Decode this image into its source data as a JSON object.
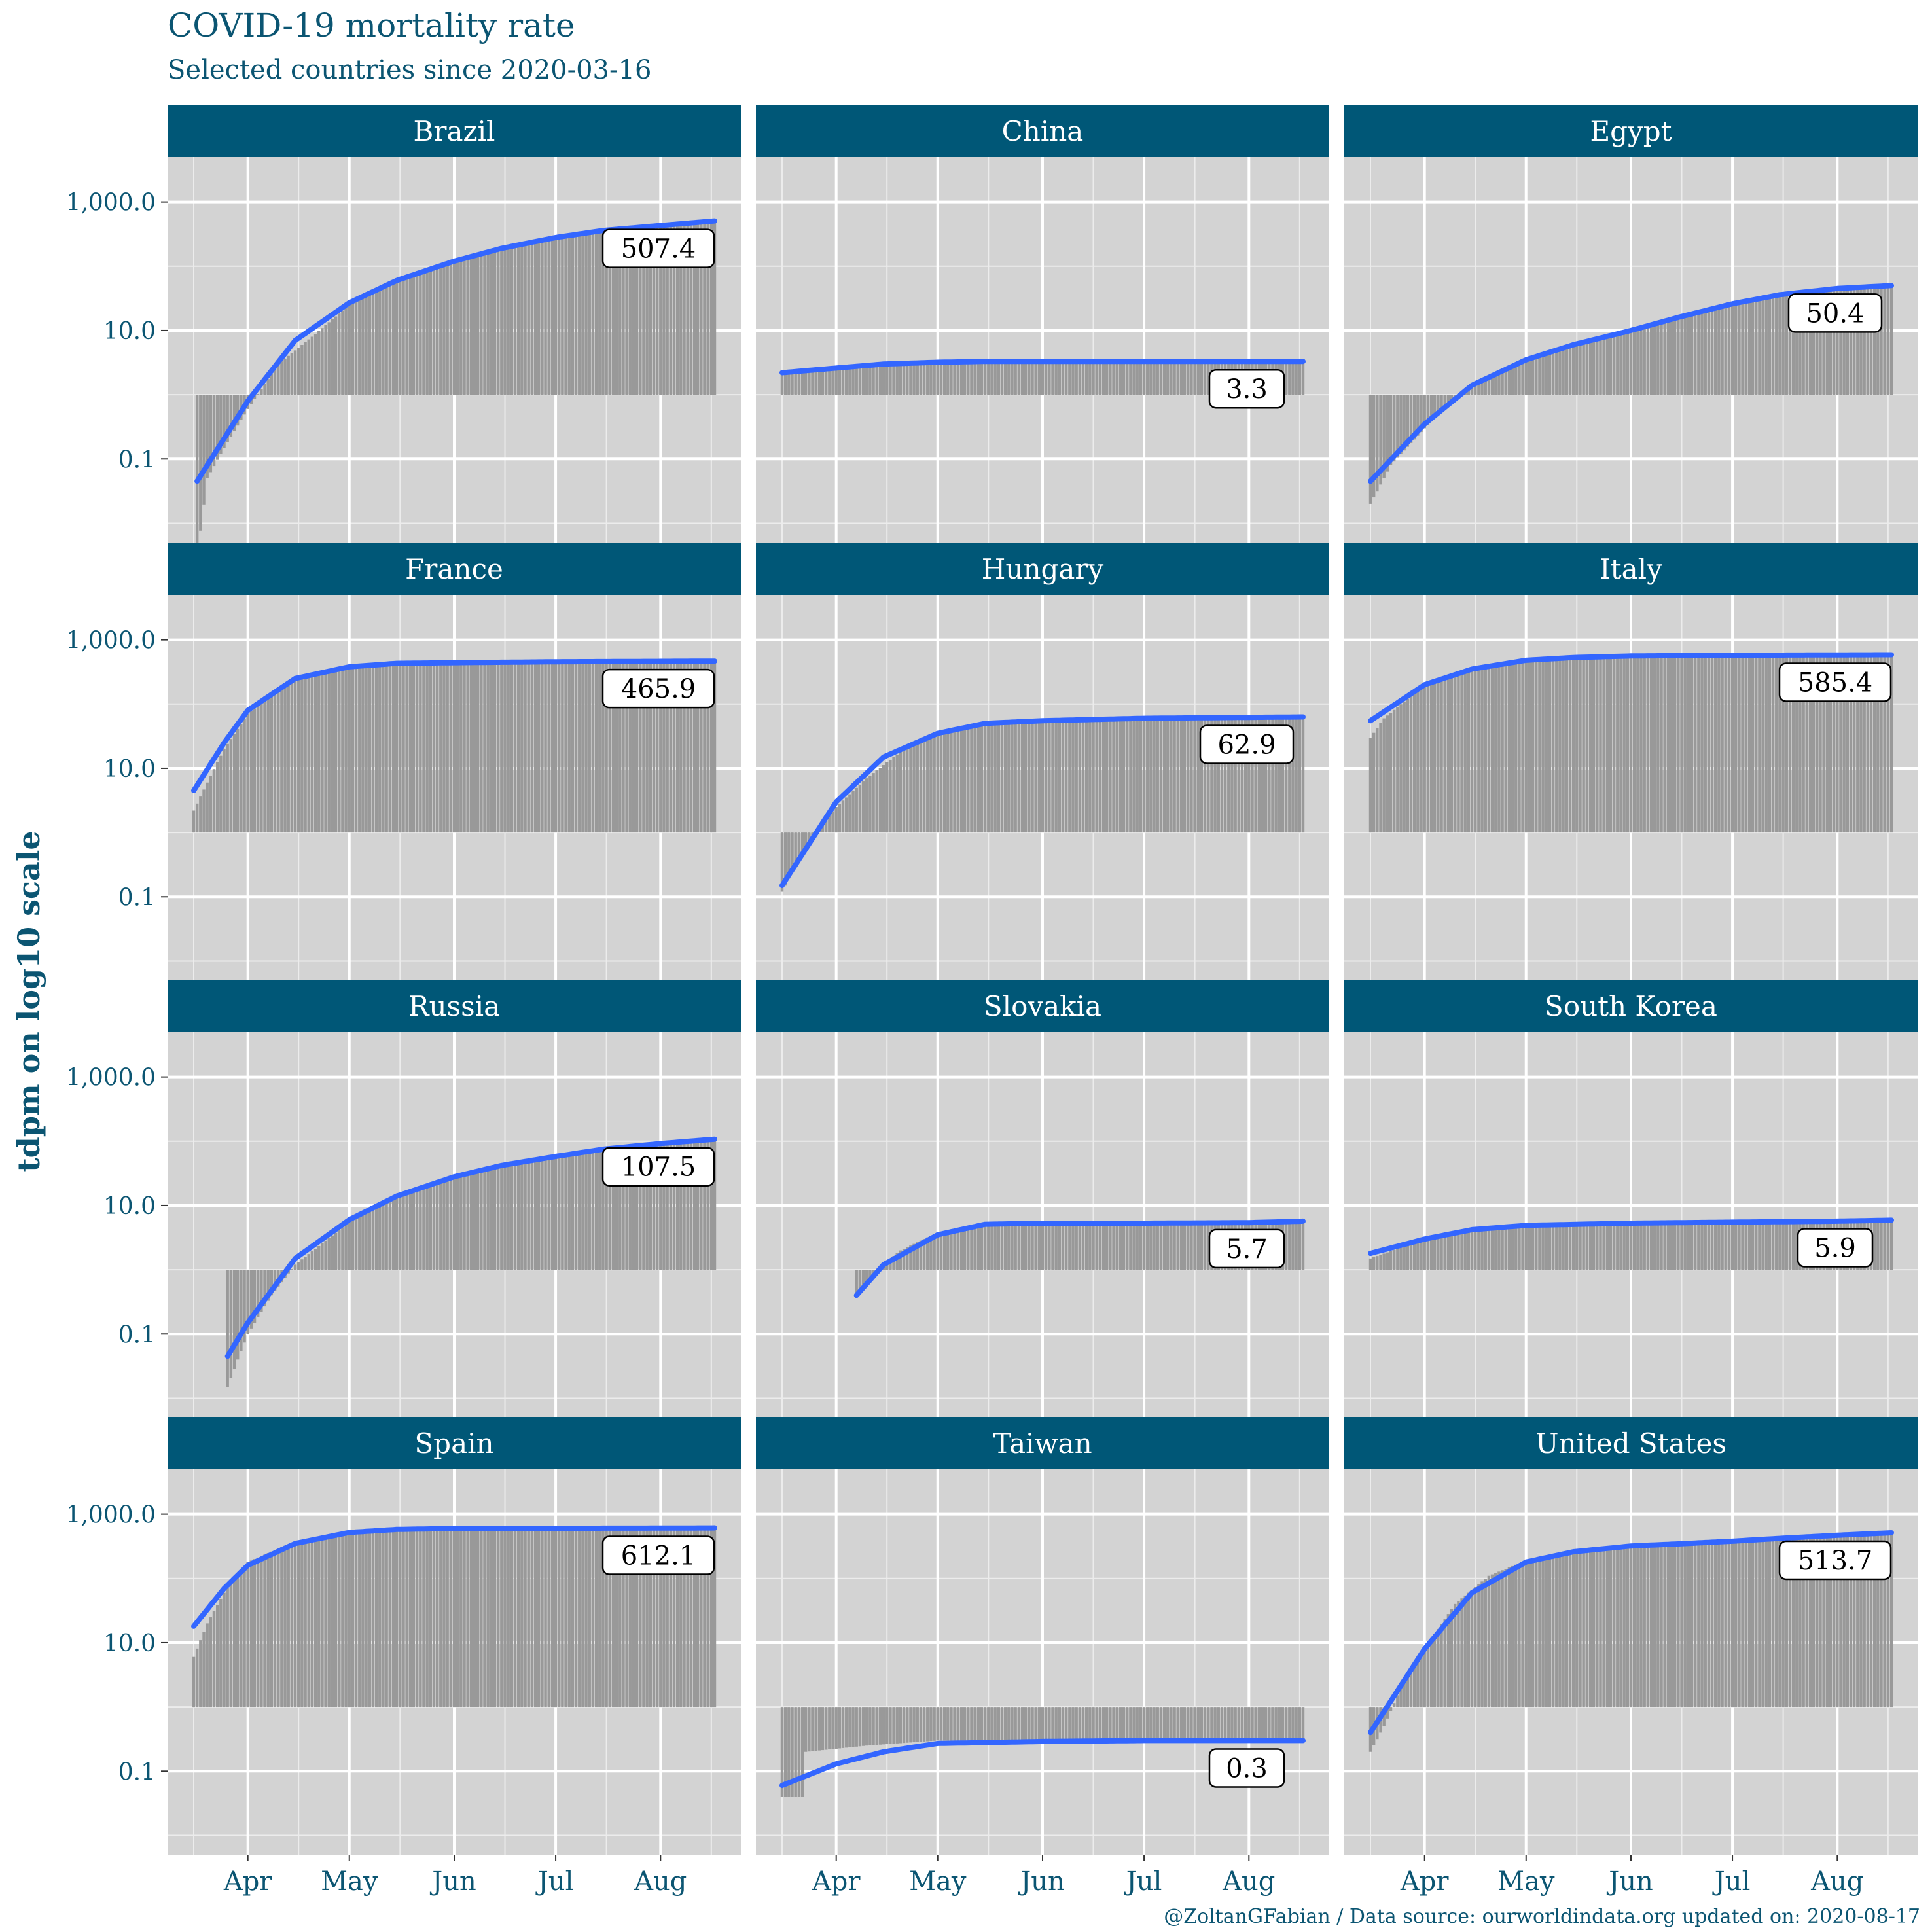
{
  "title": "COVID-19 mortality rate",
  "subtitle": "Selected countries since 2020-03-16",
  "caption": "@ZoltanGFabian / Data source: ourworldindata.org updated on: 2020-08-17",
  "colors": {
    "strip": "#005777",
    "panel": "#d3d3d3",
    "grid": "#ffffff",
    "line": "#3366ff",
    "bars": "#999999",
    "text": "#0b5572"
  },
  "chart_data": {
    "type": "bar",
    "facets": "4 rows x 3 columns",
    "ylabel": "tdpm on log10 scale",
    "xlabel": "",
    "yscale": "log10",
    "yticks": [
      0.1,
      10.0,
      1000.0
    ],
    "ytick_labels": [
      "0.1",
      "10.0",
      "1,000.0"
    ],
    "ylim": [
      0.005,
      5000
    ],
    "x_range": [
      "2020-03-16",
      "2020-08-17"
    ],
    "xticks": [
      "2020-04-01",
      "2020-05-01",
      "2020-06-01",
      "2020-07-01",
      "2020-08-01"
    ],
    "xtick_labels": [
      "Apr",
      "May",
      "Jun",
      "Jul",
      "Aug"
    ],
    "bar_baseline": 1,
    "series_note": "bars = daily tdpm values, blue line = smoothed trend, box = latest value",
    "panels": [
      {
        "name": "Brazil",
        "label": "507.4",
        "trend": [
          [
            "2020-03-17",
            0.045
          ],
          [
            "2020-04-01",
            0.8
          ],
          [
            "2020-04-15",
            7
          ],
          [
            "2020-05-01",
            27
          ],
          [
            "2020-05-15",
            60
          ],
          [
            "2020-06-01",
            120
          ],
          [
            "2020-06-15",
            190
          ],
          [
            "2020-07-01",
            280
          ],
          [
            "2020-07-15",
            360
          ],
          [
            "2020-08-01",
            430
          ],
          [
            "2020-08-17",
            507
          ]
        ],
        "bars": [
          [
            "2020-03-17",
            0.003
          ],
          [
            "2020-03-20",
            0.05
          ],
          [
            "2020-03-25",
            0.15
          ],
          [
            "2020-04-01",
            0.6
          ],
          [
            "2020-04-10",
            3
          ],
          [
            "2020-04-20",
            8
          ],
          [
            "2020-05-01",
            25
          ],
          [
            "2020-05-15",
            60
          ],
          [
            "2020-06-01",
            120
          ],
          [
            "2020-06-15",
            190
          ],
          [
            "2020-07-01",
            280
          ],
          [
            "2020-07-15",
            360
          ],
          [
            "2020-08-01",
            430
          ],
          [
            "2020-08-17",
            507
          ]
        ]
      },
      {
        "name": "China",
        "label": "3.3",
        "trend": [
          [
            "2020-03-16",
            2.2
          ],
          [
            "2020-04-01",
            2.6
          ],
          [
            "2020-04-15",
            3.0
          ],
          [
            "2020-05-01",
            3.2
          ],
          [
            "2020-05-15",
            3.3
          ],
          [
            "2020-06-01",
            3.3
          ],
          [
            "2020-07-01",
            3.3
          ],
          [
            "2020-08-01",
            3.3
          ],
          [
            "2020-08-17",
            3.3
          ]
        ],
        "bars": [
          [
            "2020-03-16",
            2.2
          ],
          [
            "2020-04-01",
            2.4
          ],
          [
            "2020-04-17",
            3.2
          ],
          [
            "2020-05-01",
            3.3
          ],
          [
            "2020-08-17",
            3.3
          ]
        ]
      },
      {
        "name": "Egypt",
        "label": "50.4",
        "trend": [
          [
            "2020-03-16",
            0.045
          ],
          [
            "2020-04-01",
            0.35
          ],
          [
            "2020-04-15",
            1.4
          ],
          [
            "2020-05-01",
            3.5
          ],
          [
            "2020-05-15",
            6
          ],
          [
            "2020-06-01",
            10
          ],
          [
            "2020-06-15",
            16
          ],
          [
            "2020-07-01",
            26
          ],
          [
            "2020-07-15",
            36
          ],
          [
            "2020-08-01",
            45
          ],
          [
            "2020-08-17",
            50
          ]
        ],
        "bars": [
          [
            "2020-03-16",
            0.02
          ],
          [
            "2020-03-22",
            0.08
          ],
          [
            "2020-04-01",
            0.3
          ],
          [
            "2020-04-10",
            0.9
          ],
          [
            "2020-04-20",
            2
          ],
          [
            "2020-05-01",
            3.5
          ],
          [
            "2020-05-15",
            6
          ],
          [
            "2020-06-01",
            10
          ],
          [
            "2020-06-15",
            16
          ],
          [
            "2020-07-01",
            26
          ],
          [
            "2020-07-15",
            36
          ],
          [
            "2020-08-01",
            45
          ],
          [
            "2020-08-17",
            50
          ]
        ]
      },
      {
        "name": "France",
        "label": "465.9",
        "trend": [
          [
            "2020-03-16",
            4.5
          ],
          [
            "2020-03-25",
            25
          ],
          [
            "2020-04-01",
            80
          ],
          [
            "2020-04-15",
            250
          ],
          [
            "2020-05-01",
            380
          ],
          [
            "2020-05-15",
            430
          ],
          [
            "2020-06-01",
            440
          ],
          [
            "2020-07-01",
            455
          ],
          [
            "2020-08-01",
            462
          ],
          [
            "2020-08-17",
            466
          ]
        ],
        "bars": [
          [
            "2020-03-16",
            2.2
          ],
          [
            "2020-03-20",
            6
          ],
          [
            "2020-03-25",
            20
          ],
          [
            "2020-04-01",
            70
          ],
          [
            "2020-04-10",
            170
          ],
          [
            "2020-04-20",
            300
          ],
          [
            "2020-05-01",
            370
          ],
          [
            "2020-05-15",
            420
          ],
          [
            "2020-06-01",
            440
          ],
          [
            "2020-08-17",
            466
          ]
        ]
      },
      {
        "name": "Hungary",
        "label": "62.9",
        "trend": [
          [
            "2020-03-16",
            0.15
          ],
          [
            "2020-04-01",
            3
          ],
          [
            "2020-04-15",
            15
          ],
          [
            "2020-05-01",
            35
          ],
          [
            "2020-05-15",
            50
          ],
          [
            "2020-06-01",
            55
          ],
          [
            "2020-07-01",
            60
          ],
          [
            "2020-08-01",
            62
          ],
          [
            "2020-08-17",
            63
          ]
        ],
        "bars": [
          [
            "2020-03-16",
            0.12
          ],
          [
            "2020-03-22",
            0.5
          ],
          [
            "2020-04-01",
            2.5
          ],
          [
            "2020-04-10",
            7
          ],
          [
            "2020-04-20",
            18
          ],
          [
            "2020-05-01",
            33
          ],
          [
            "2020-05-15",
            50
          ],
          [
            "2020-06-01",
            56
          ],
          [
            "2020-08-17",
            63
          ]
        ]
      },
      {
        "name": "Italy",
        "label": "585.4",
        "trend": [
          [
            "2020-03-16",
            55
          ],
          [
            "2020-04-01",
            200
          ],
          [
            "2020-04-15",
            350
          ],
          [
            "2020-05-01",
            480
          ],
          [
            "2020-05-15",
            530
          ],
          [
            "2020-06-01",
            560
          ],
          [
            "2020-07-01",
            575
          ],
          [
            "2020-08-01",
            582
          ],
          [
            "2020-08-17",
            585
          ]
        ],
        "bars": [
          [
            "2020-03-16",
            30
          ],
          [
            "2020-03-20",
            60
          ],
          [
            "2020-04-01",
            200
          ],
          [
            "2020-04-15",
            340
          ],
          [
            "2020-05-01",
            460
          ],
          [
            "2020-05-15",
            520
          ],
          [
            "2020-06-01",
            560
          ],
          [
            "2020-08-17",
            585
          ]
        ]
      },
      {
        "name": "Russia",
        "label": "107.5",
        "trend": [
          [
            "2020-03-26",
            0.045
          ],
          [
            "2020-04-01",
            0.15
          ],
          [
            "2020-04-15",
            1.5
          ],
          [
            "2020-05-01",
            6
          ],
          [
            "2020-05-15",
            14
          ],
          [
            "2020-06-01",
            28
          ],
          [
            "2020-06-15",
            42
          ],
          [
            "2020-07-01",
            58
          ],
          [
            "2020-07-15",
            75
          ],
          [
            "2020-08-01",
            92
          ],
          [
            "2020-08-17",
            107.5
          ]
        ],
        "bars": [
          [
            "2020-03-26",
            0.015
          ],
          [
            "2020-03-29",
            0.04
          ],
          [
            "2020-04-01",
            0.1
          ],
          [
            "2020-04-08",
            0.4
          ],
          [
            "2020-04-15",
            1.2
          ],
          [
            "2020-05-01",
            5.5
          ],
          [
            "2020-05-15",
            14
          ],
          [
            "2020-06-01",
            28
          ],
          [
            "2020-06-15",
            42
          ],
          [
            "2020-07-01",
            58
          ],
          [
            "2020-07-15",
            75
          ],
          [
            "2020-08-01",
            92
          ],
          [
            "2020-08-17",
            107.5
          ]
        ]
      },
      {
        "name": "Slovakia",
        "label": "5.7",
        "trend": [
          [
            "2020-04-07",
            0.4
          ],
          [
            "2020-04-15",
            1.2
          ],
          [
            "2020-05-01",
            3.5
          ],
          [
            "2020-05-15",
            5.1
          ],
          [
            "2020-06-01",
            5.3
          ],
          [
            "2020-07-01",
            5.3
          ],
          [
            "2020-08-01",
            5.4
          ],
          [
            "2020-08-17",
            5.7
          ]
        ],
        "bars": [
          [
            "2020-04-07",
            0.4
          ],
          [
            "2020-04-14",
            1.1
          ],
          [
            "2020-04-20",
            2
          ],
          [
            "2020-05-01",
            3.8
          ],
          [
            "2020-05-15",
            5.1
          ],
          [
            "2020-08-17",
            5.7
          ]
        ]
      },
      {
        "name": "South Korea",
        "label": "5.9",
        "trend": [
          [
            "2020-03-16",
            1.8
          ],
          [
            "2020-04-01",
            3
          ],
          [
            "2020-04-15",
            4.2
          ],
          [
            "2020-05-01",
            4.9
          ],
          [
            "2020-06-01",
            5.3
          ],
          [
            "2020-07-01",
            5.5
          ],
          [
            "2020-08-01",
            5.7
          ],
          [
            "2020-08-17",
            5.9
          ]
        ],
        "bars": [
          [
            "2020-03-16",
            1.5
          ],
          [
            "2020-04-01",
            3
          ],
          [
            "2020-04-15",
            4.3
          ],
          [
            "2020-05-01",
            4.9
          ],
          [
            "2020-06-01",
            5.3
          ],
          [
            "2020-08-17",
            5.9
          ]
        ]
      },
      {
        "name": "Spain",
        "label": "612.1",
        "trend": [
          [
            "2020-03-16",
            18
          ],
          [
            "2020-03-25",
            70
          ],
          [
            "2020-04-01",
            160
          ],
          [
            "2020-04-15",
            350
          ],
          [
            "2020-05-01",
            520
          ],
          [
            "2020-05-15",
            580
          ],
          [
            "2020-06-01",
            600
          ],
          [
            "2020-07-01",
            605
          ],
          [
            "2020-08-01",
            608
          ],
          [
            "2020-08-17",
            612
          ]
        ],
        "bars": [
          [
            "2020-03-16",
            6
          ],
          [
            "2020-03-20",
            20
          ],
          [
            "2020-03-25",
            60
          ],
          [
            "2020-04-01",
            180
          ],
          [
            "2020-04-15",
            380
          ],
          [
            "2020-05-01",
            520
          ],
          [
            "2020-05-15",
            580
          ],
          [
            "2020-06-01",
            600
          ],
          [
            "2020-08-17",
            612
          ]
        ]
      },
      {
        "name": "Taiwan",
        "label": "0.3",
        "trend": [
          [
            "2020-03-16",
            0.06
          ],
          [
            "2020-04-01",
            0.13
          ],
          [
            "2020-04-15",
            0.2
          ],
          [
            "2020-05-01",
            0.27
          ],
          [
            "2020-06-01",
            0.29
          ],
          [
            "2020-07-01",
            0.3
          ],
          [
            "2020-08-17",
            0.3
          ]
        ],
        "bars": [
          [
            "2020-03-16",
            0.04
          ],
          [
            "2020-03-22",
            0.04
          ],
          [
            "2020-03-23",
            0.2
          ],
          [
            "2020-04-10",
            0.25
          ],
          [
            "2020-05-01",
            0.3
          ],
          [
            "2020-08-17",
            0.3
          ]
        ]
      },
      {
        "name": "United States",
        "label": "513.7",
        "trend": [
          [
            "2020-03-16",
            0.4
          ],
          [
            "2020-04-01",
            8
          ],
          [
            "2020-04-15",
            60
          ],
          [
            "2020-05-01",
            180
          ],
          [
            "2020-05-15",
            260
          ],
          [
            "2020-06-01",
            320
          ],
          [
            "2020-06-15",
            345
          ],
          [
            "2020-07-01",
            380
          ],
          [
            "2020-07-15",
            420
          ],
          [
            "2020-08-01",
            470
          ],
          [
            "2020-08-17",
            514
          ]
        ],
        "bars": [
          [
            "2020-03-16",
            0.2
          ],
          [
            "2020-03-20",
            0.5
          ],
          [
            "2020-03-25",
            2
          ],
          [
            "2020-04-01",
            8
          ],
          [
            "2020-04-10",
            40
          ],
          [
            "2020-04-20",
            110
          ],
          [
            "2020-05-01",
            190
          ],
          [
            "2020-05-15",
            260
          ],
          [
            "2020-06-01",
            320
          ],
          [
            "2020-07-01",
            380
          ],
          [
            "2020-08-01",
            470
          ],
          [
            "2020-08-17",
            514
          ]
        ]
      }
    ]
  }
}
